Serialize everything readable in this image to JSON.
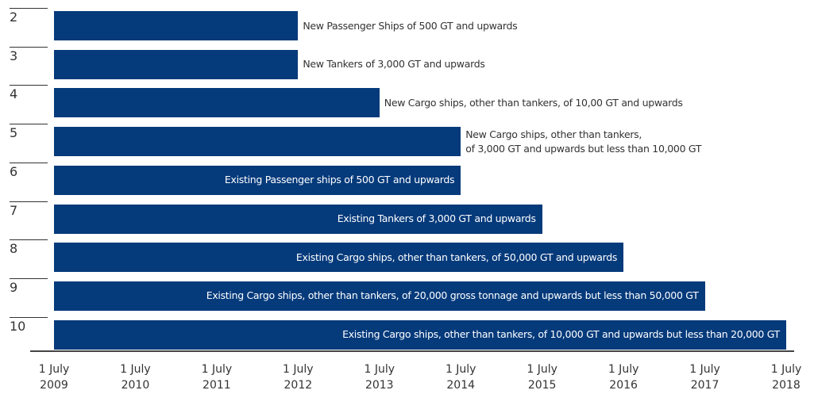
{
  "chart_data": {
    "type": "bar",
    "orientation": "horizontal",
    "color": "#053a7b",
    "categories": [
      "2",
      "3",
      "4",
      "5",
      "6",
      "7",
      "8",
      "9",
      "10"
    ],
    "labels": [
      "New Passenger Ships of 500 GT and upwards",
      "New Tankers of 3,000 GT and upwards",
      "New Cargo ships, other than tankers, of 10,00 GT and upwards",
      "New Cargo ships, other than tankers,\nof 3,000 GT and upwards but less than 10,000 GT",
      "Existing Passenger ships of 500 GT and upwards",
      "Existing Tankers of 3,000 GT and upwards",
      "Existing Cargo ships, other than tankers, of 50,000 GT and upwards",
      "Existing Cargo ships, other than tankers, of 20,000 gross tonnage and upwards but less than 50,000 GT",
      "Existing Cargo ships, other than tankers, of 10,000 GT and upwards but less than 20,000 GT"
    ],
    "values": [
      2012,
      2012,
      2013,
      2014,
      2014,
      2015,
      2016,
      2017,
      2018
    ],
    "xlim": [
      2009,
      2018
    ],
    "xticks": [
      {
        "value": 2009,
        "label": "1 July 2009"
      },
      {
        "value": 2010,
        "label": "1 July 2010"
      },
      {
        "value": 2011,
        "label": "1 July 2011"
      },
      {
        "value": 2012,
        "label": "1 July 2012"
      },
      {
        "value": 2013,
        "label": "1 July 2013"
      },
      {
        "value": 2014,
        "label": "1 July 2014"
      },
      {
        "value": 2015,
        "label": "1 July 2015"
      },
      {
        "value": 2016,
        "label": "1 July 2016"
      },
      {
        "value": 2017,
        "label": "1 July 2017"
      },
      {
        "value": 2018,
        "label": "1 July 2018"
      }
    ]
  }
}
